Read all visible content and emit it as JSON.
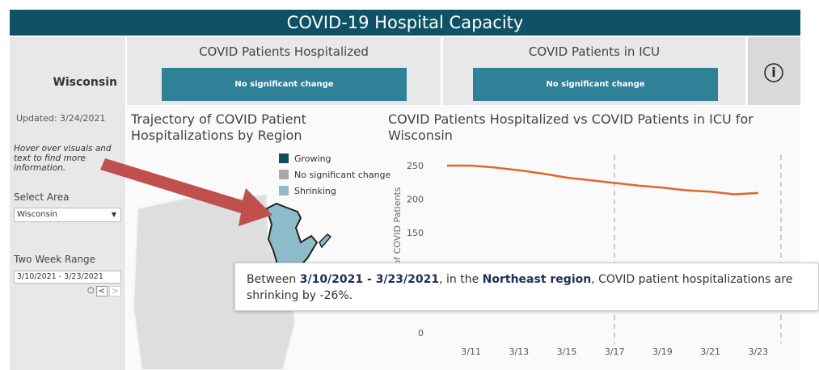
{
  "header": {
    "title": "COVID-19 Hospital Capacity"
  },
  "area_box": {
    "label": "Wisconsin"
  },
  "panels": [
    {
      "title": "COVID Patients Hospitalized",
      "status": "No significant change"
    },
    {
      "title": "COVID Patients in ICU",
      "status": "No significant change"
    }
  ],
  "info_icon": "i",
  "sidebar": {
    "updated": "Updated: 3/24/2021",
    "hint": "Hover over visuals and text to find more information.",
    "select_label": "Select Area",
    "select_value": "Wisconsin",
    "range_label": "Two Week Range",
    "range_value": "3/10/2021 - 3/23/2021"
  },
  "map": {
    "title": "Trajectory of COVID Patient Hospitalizations by Region",
    "legend": [
      {
        "name": "Growing",
        "color": "#0e4b5c"
      },
      {
        "name": "No significant change",
        "color": "#a9a9a9"
      },
      {
        "name": "Shrinking",
        "color": "#8fbccb"
      }
    ]
  },
  "tooltip": {
    "prefix": "Between ",
    "dates": "3/10/2021 - 3/23/2021",
    "mid": ", in the ",
    "region": "Northeast region",
    "suffix": ", COVID patient hospitalizations are shrinking by -26%."
  },
  "chart_data": {
    "type": "line",
    "title": "COVID Patients Hospitalized vs COVID Patients in ICU for Wisconsin",
    "y_label": "of COVID Patients",
    "categories": [
      null,
      "3/11",
      null,
      "3/13",
      null,
      "3/15",
      null,
      "3/17",
      null,
      "3/19",
      null,
      "3/21",
      null,
      "3/23"
    ],
    "series": [
      {
        "name": "COVID Patients Hospitalized",
        "color": "#e0662a",
        "values": [
          250,
          250,
          247,
          243,
          238,
          232,
          228,
          224,
          220,
          217,
          213,
          211,
          207,
          209
        ]
      }
    ],
    "ylim": [
      0,
      262
    ],
    "yticks": [
      0,
      50,
      100,
      150,
      200,
      250
    ]
  }
}
